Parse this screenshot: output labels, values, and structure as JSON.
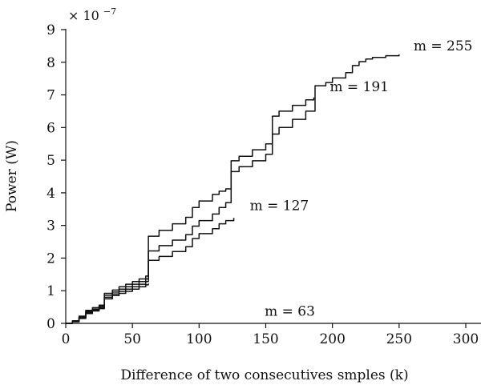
{
  "chart_data": {
    "type": "line",
    "title": "",
    "xlabel": "Difference of two consecutives smples (k)",
    "ylabel": "Power (W)",
    "y_multiplier": {
      "base": "× 10",
      "exponent": "−7"
    },
    "xlim": [
      0,
      300
    ],
    "ylim": [
      0,
      9
    ],
    "x_ticks": [
      0,
      50,
      100,
      150,
      200,
      250,
      300
    ],
    "y_ticks": [
      0,
      1,
      2,
      3,
      4,
      5,
      6,
      7,
      8,
      9
    ],
    "grid": false,
    "legend": "none",
    "line_color": "#111111",
    "series": [
      {
        "name": "m = 63",
        "x": [
          0,
          5,
          10,
          15,
          20,
          25,
          29,
          29,
          35,
          40,
          45,
          50,
          55,
          60,
          62
        ],
        "y": [
          0,
          0.05,
          0.15,
          0.3,
          0.38,
          0.45,
          0.48,
          0.75,
          0.85,
          0.92,
          0.98,
          1.05,
          1.12,
          1.18,
          1.22
        ]
      },
      {
        "name": "m = 127",
        "x": [
          0,
          5,
          10,
          15,
          20,
          25,
          29,
          29,
          35,
          40,
          45,
          50,
          55,
          60,
          62,
          62,
          70,
          80,
          90,
          95,
          100,
          110,
          115,
          120,
          126
        ],
        "y": [
          0,
          0.06,
          0.17,
          0.33,
          0.41,
          0.48,
          0.52,
          0.8,
          0.9,
          0.98,
          1.05,
          1.12,
          1.2,
          1.28,
          1.33,
          1.93,
          2.05,
          2.2,
          2.35,
          2.6,
          2.75,
          2.9,
          3.05,
          3.15,
          3.23
        ]
      },
      {
        "name": "m = 191",
        "x": [
          0,
          5,
          10,
          15,
          20,
          25,
          29,
          29,
          35,
          40,
          45,
          50,
          55,
          60,
          62,
          62,
          70,
          80,
          90,
          95,
          100,
          110,
          115,
          120,
          124,
          124,
          130,
          140,
          150,
          155,
          160,
          170,
          180,
          186
        ],
        "y": [
          0,
          0.07,
          0.19,
          0.36,
          0.44,
          0.52,
          0.56,
          0.86,
          0.96,
          1.05,
          1.12,
          1.2,
          1.28,
          1.36,
          1.42,
          2.22,
          2.38,
          2.55,
          2.72,
          2.98,
          3.15,
          3.35,
          3.55,
          3.7,
          3.78,
          4.65,
          4.8,
          4.98,
          5.18,
          6.35,
          6.5,
          6.68,
          6.85,
          6.92
        ]
      },
      {
        "name": "m = 255",
        "x": [
          0,
          5,
          10,
          15,
          20,
          25,
          29,
          29,
          35,
          40,
          45,
          50,
          55,
          60,
          62,
          62,
          70,
          80,
          90,
          95,
          100,
          110,
          115,
          120,
          124,
          124,
          130,
          140,
          150,
          155,
          160,
          170,
          180,
          187,
          187,
          195,
          200,
          210,
          215,
          220,
          225,
          230,
          240,
          250
        ],
        "y": [
          0,
          0.08,
          0.22,
          0.4,
          0.48,
          0.56,
          0.6,
          0.92,
          1.02,
          1.12,
          1.2,
          1.28,
          1.36,
          1.45,
          1.52,
          2.67,
          2.85,
          3.05,
          3.25,
          3.55,
          3.75,
          3.95,
          4.05,
          4.12,
          4.16,
          4.98,
          5.12,
          5.32,
          5.5,
          5.8,
          6.0,
          6.25,
          6.5,
          6.85,
          7.28,
          7.38,
          7.52,
          7.68,
          7.9,
          8.02,
          8.1,
          8.15,
          8.2,
          8.24
        ]
      }
    ]
  }
}
